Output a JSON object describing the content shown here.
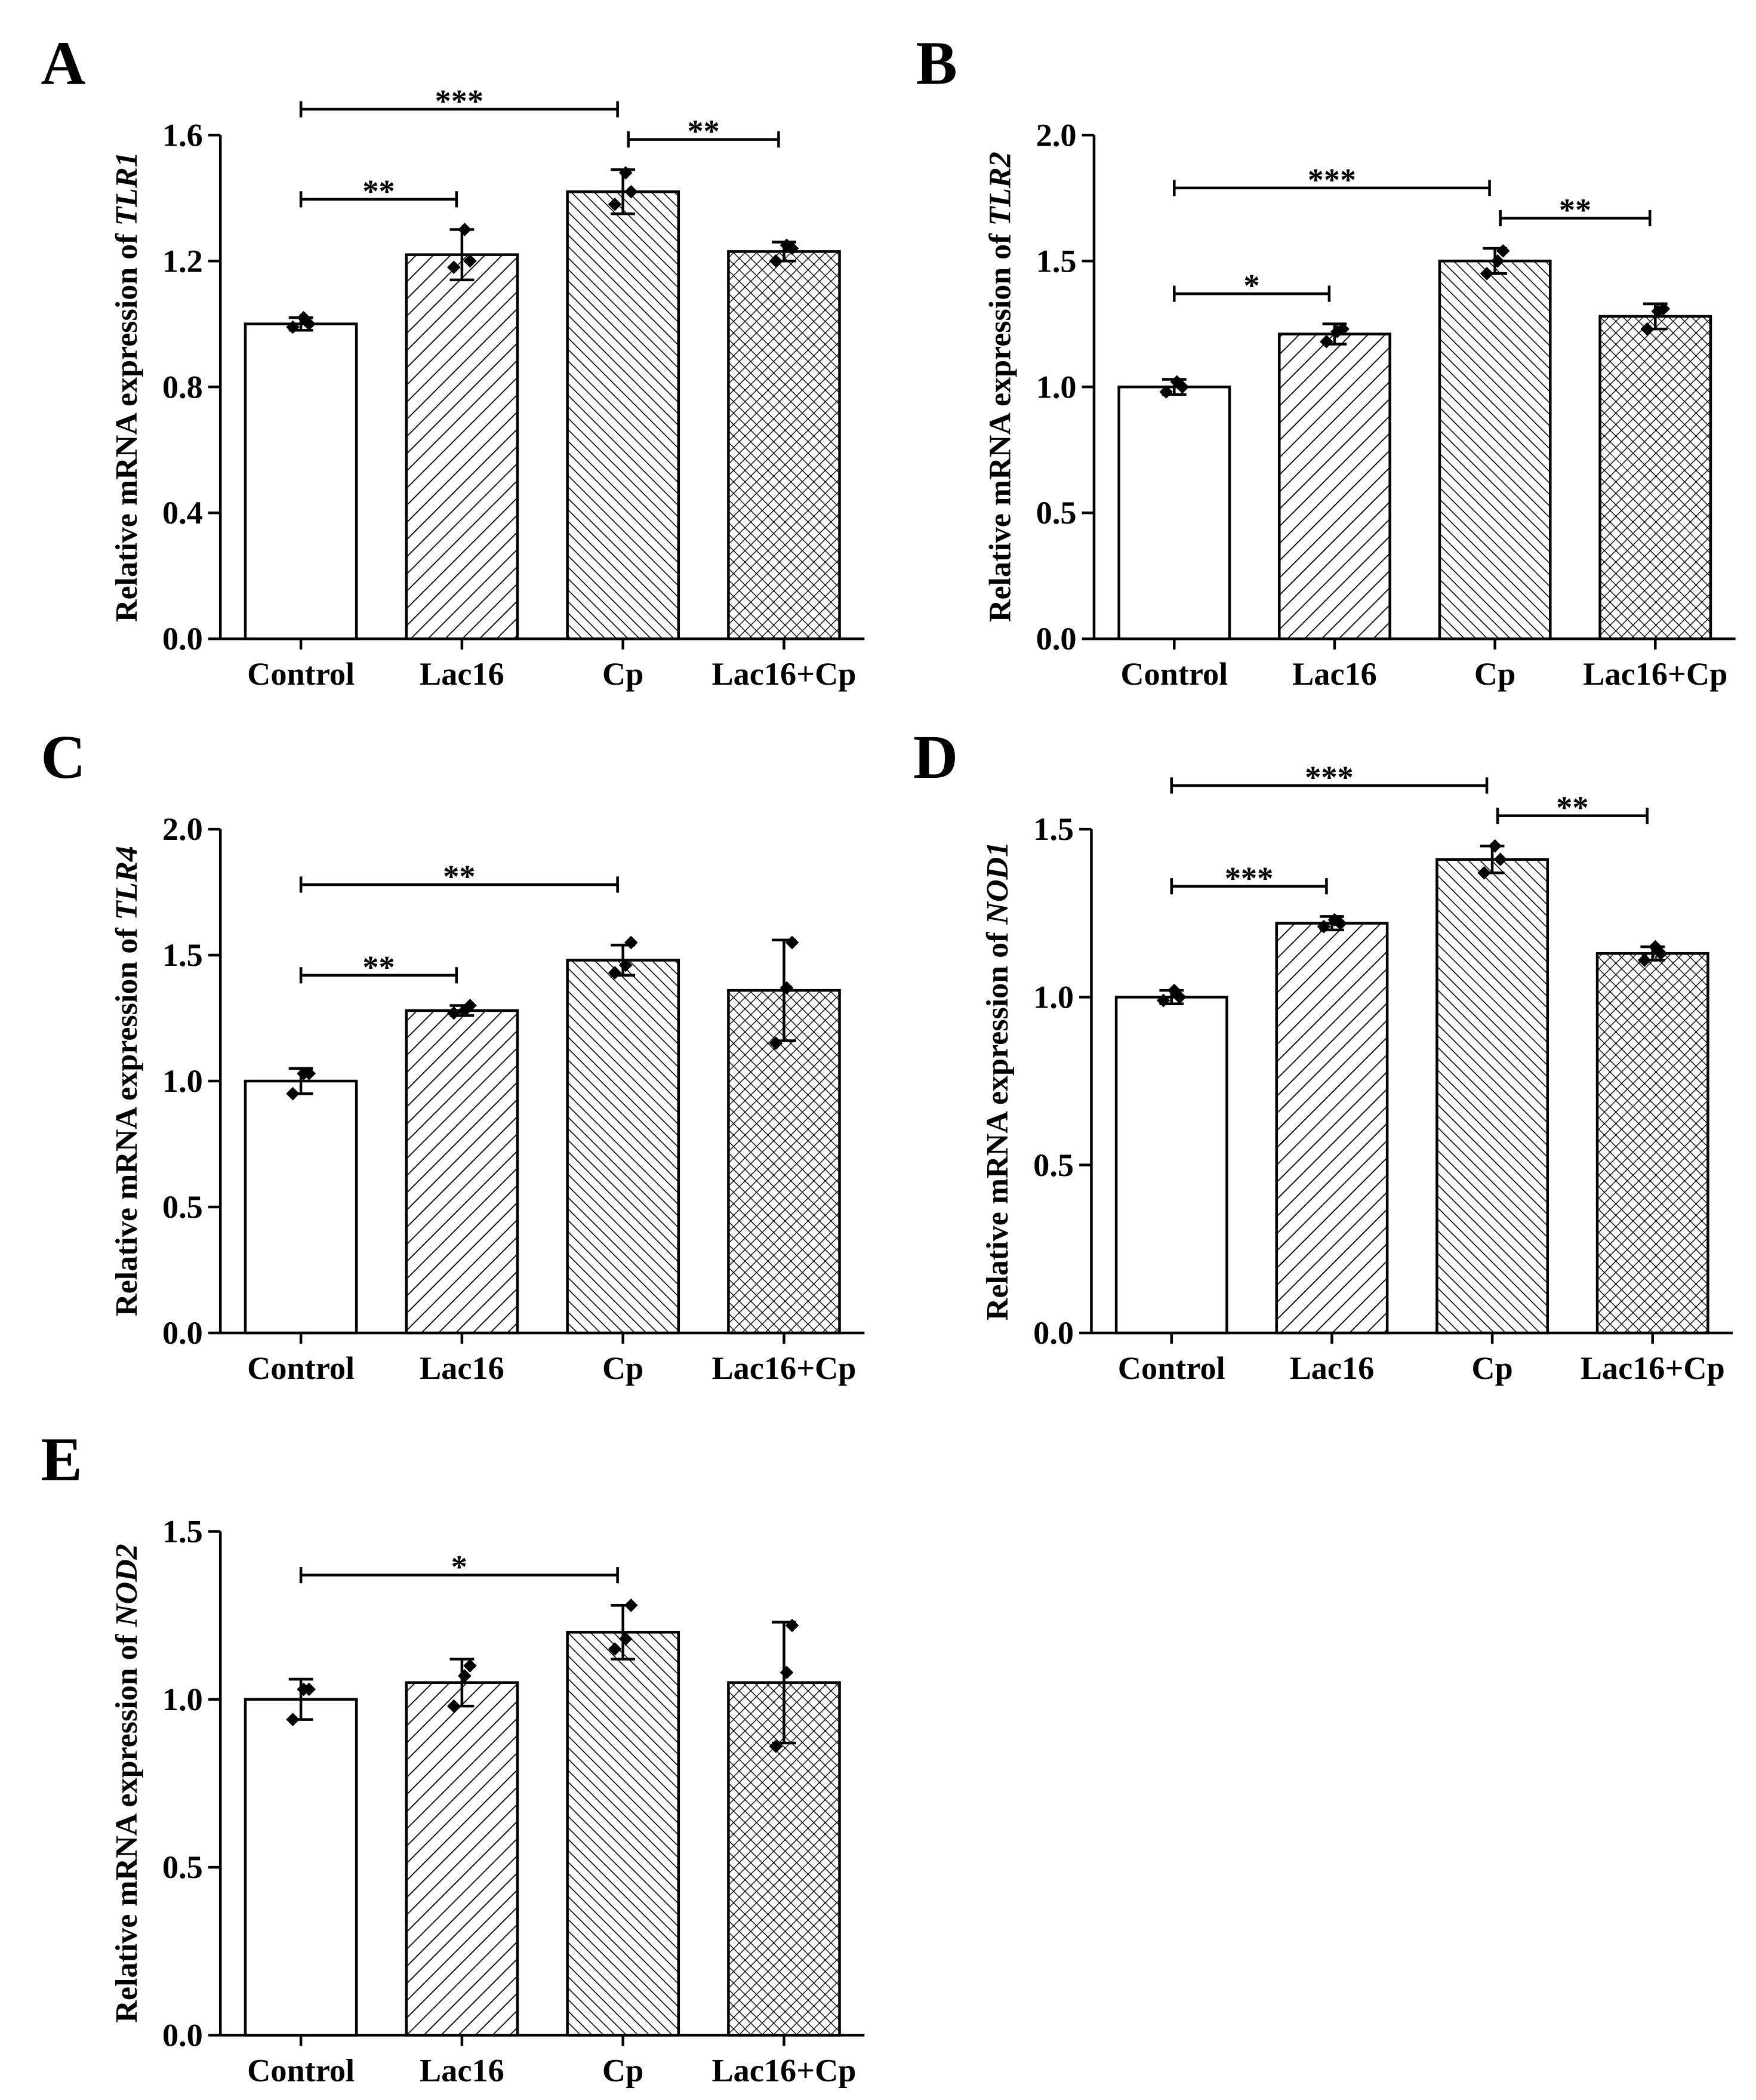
{
  "chart_data": [
    {
      "type": "bar",
      "panel": "A",
      "ylabel": "Relative mRNA expression of",
      "gene": "TLR1",
      "categories": [
        "Control",
        "Lac16",
        "Cp",
        "Lac16+Cp"
      ],
      "patterns": [
        "none",
        "forward",
        "back",
        "cross"
      ],
      "values": [
        1.0,
        1.22,
        1.42,
        1.23
      ],
      "errors": [
        0.02,
        0.08,
        0.07,
        0.03
      ],
      "points": [
        [
          0.99,
          1.02,
          1.0
        ],
        [
          1.18,
          1.3,
          1.2
        ],
        [
          1.38,
          1.48,
          1.42
        ],
        [
          1.2,
          1.25,
          1.24
        ]
      ],
      "ylim": [
        0,
        1.6
      ],
      "yticks": [
        {
          "value": 0,
          "label": "0.0"
        },
        0.4,
        0.8,
        1.2,
        1.6
      ],
      "brackets": [
        {
          "from": 0,
          "to": 1,
          "label": "**"
        },
        {
          "from": 0,
          "to": 2,
          "label": "***"
        },
        {
          "from": 2,
          "to": 3,
          "label": "**"
        }
      ]
    },
    {
      "type": "bar",
      "panel": "B",
      "ylabel": "Relative mRNA expression of",
      "gene": "TLR2",
      "categories": [
        "Control",
        "Lac16",
        "Cp",
        "Lac16+Cp"
      ],
      "patterns": [
        "none",
        "forward",
        "back",
        "cross"
      ],
      "values": [
        1.0,
        1.21,
        1.5,
        1.28
      ],
      "errors": [
        0.03,
        0.04,
        0.05,
        0.05
      ],
      "points": [
        [
          0.98,
          1.02,
          1.0
        ],
        [
          1.18,
          1.22,
          1.23
        ],
        [
          1.45,
          1.5,
          1.54
        ],
        [
          1.23,
          1.3,
          1.31
        ]
      ],
      "ylim": [
        0,
        2.0
      ],
      "yticks": [
        {
          "value": 0,
          "label": "0.0"
        },
        0.5,
        {
          "value": 1,
          "label": "1.0"
        },
        1.5,
        {
          "value": 2,
          "label": "2.0"
        }
      ],
      "brackets": [
        {
          "from": 0,
          "to": 1,
          "label": "*"
        },
        {
          "from": 0,
          "to": 2,
          "label": "***"
        },
        {
          "from": 2,
          "to": 3,
          "label": "**"
        }
      ]
    },
    {
      "type": "bar",
      "panel": "C",
      "ylabel": "Relative mRNA expression of",
      "gene": "TLR4",
      "categories": [
        "Control",
        "Lac16",
        "Cp",
        "Lac16+Cp"
      ],
      "patterns": [
        "none",
        "forward",
        "back",
        "cross"
      ],
      "values": [
        1.0,
        1.28,
        1.48,
        1.36
      ],
      "errors": [
        0.05,
        0.02,
        0.06,
        0.2
      ],
      "points": [
        [
          0.95,
          1.03,
          1.03
        ],
        [
          1.27,
          1.28,
          1.3
        ],
        [
          1.43,
          1.46,
          1.55
        ],
        [
          1.15,
          1.37,
          1.55
        ]
      ],
      "ylim": [
        0,
        2.0
      ],
      "yticks": [
        {
          "value": 0,
          "label": "0.0"
        },
        0.5,
        {
          "value": 1,
          "label": "1.0"
        },
        1.5,
        {
          "value": 2,
          "label": "2.0"
        }
      ],
      "brackets": [
        {
          "from": 0,
          "to": 1,
          "label": "**"
        },
        {
          "from": 0,
          "to": 2,
          "label": "**"
        }
      ]
    },
    {
      "type": "bar",
      "panel": "D",
      "ylabel": "Relative mRNA expression of",
      "gene": "NOD1",
      "categories": [
        "Control",
        "Lac16",
        "Cp",
        "Lac16+Cp"
      ],
      "patterns": [
        "none",
        "forward",
        "back",
        "cross"
      ],
      "values": [
        1.0,
        1.22,
        1.41,
        1.13
      ],
      "errors": [
        0.02,
        0.02,
        0.04,
        0.02
      ],
      "points": [
        [
          0.99,
          1.02,
          1.0
        ],
        [
          1.21,
          1.23,
          1.22
        ],
        [
          1.37,
          1.45,
          1.41
        ],
        [
          1.11,
          1.15,
          1.13
        ]
      ],
      "ylim": [
        0,
        1.5
      ],
      "yticks": [
        {
          "value": 0,
          "label": "0.0"
        },
        0.5,
        {
          "value": 1,
          "label": "1.0"
        },
        1.5
      ],
      "brackets": [
        {
          "from": 0,
          "to": 1,
          "label": "***"
        },
        {
          "from": 0,
          "to": 2,
          "label": "***"
        },
        {
          "from": 2,
          "to": 3,
          "label": "**"
        }
      ]
    },
    {
      "type": "bar",
      "panel": "E",
      "ylabel": "Relative mRNA expression of",
      "gene": "NOD2",
      "categories": [
        "Control",
        "Lac16",
        "Cp",
        "Lac16+Cp"
      ],
      "patterns": [
        "none",
        "forward",
        "back",
        "cross"
      ],
      "values": [
        1.0,
        1.05,
        1.2,
        1.05
      ],
      "errors": [
        0.06,
        0.07,
        0.08,
        0.18
      ],
      "points": [
        [
          0.94,
          1.03,
          1.03
        ],
        [
          0.98,
          1.07,
          1.1
        ],
        [
          1.15,
          1.18,
          1.28
        ],
        [
          0.86,
          1.08,
          1.22
        ]
      ],
      "ylim": [
        0,
        1.5
      ],
      "yticks": [
        {
          "value": 0,
          "label": "0.0"
        },
        0.5,
        {
          "value": 1,
          "label": "1.0"
        },
        1.5
      ],
      "brackets": [
        {
          "from": 0,
          "to": 2,
          "label": "*"
        }
      ]
    }
  ]
}
